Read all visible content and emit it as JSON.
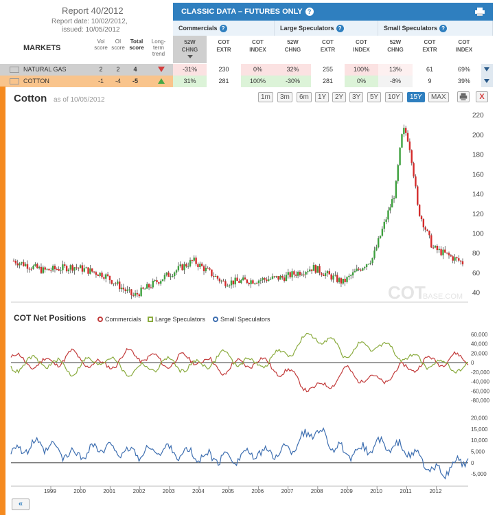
{
  "report": {
    "title": "Report 40/2012",
    "date": "Report date:  10/02/2012,",
    "issued": "issued:  10/05/2012"
  },
  "markets_label": "MARKETS",
  "score_headers": [
    {
      "key": "vol",
      "label": "Vol score"
    },
    {
      "key": "oi",
      "label": "OI score"
    },
    {
      "key": "total",
      "label": "Total score"
    },
    {
      "key": "trend",
      "label": "Long-term trend"
    }
  ],
  "classic_title": "CLASSIC DATA – FUTURES ONLY",
  "groups": [
    "Commercials",
    "Large Speculators",
    "Small Speculators"
  ],
  "columns": [
    "52W CHNG",
    "COT EXTR",
    "COT INDEX",
    "52W CHNG",
    "COT EXTR",
    "COT INDEX",
    "52W CHNG",
    "COT EXTR",
    "COT INDEX"
  ],
  "rows": [
    {
      "name": "NATURAL GAS",
      "vol": "2",
      "oi": "2",
      "total": "4",
      "trend": "down",
      "values": [
        "-31%",
        "230",
        "0%",
        "32%",
        "255",
        "100%",
        "13%",
        "61",
        "69%"
      ]
    },
    {
      "name": "COTTON",
      "vol": "-1",
      "oi": "-4",
      "total": "-5",
      "trend": "up",
      "values": [
        "31%",
        "281",
        "100%",
        "-30%",
        "281",
        "0%",
        "-8%",
        "9",
        "39%"
      ]
    }
  ],
  "chart": {
    "title": "Cotton",
    "asof": "as of 10/05/2012",
    "ranges": [
      "1m",
      "3m",
      "6m",
      "1Y",
      "2Y",
      "3Y",
      "5Y",
      "10Y",
      "15Y",
      "MAX"
    ],
    "active_range": "15Y",
    "close_label": "X",
    "nav_label": "«",
    "watermark": "COT",
    "watermark2": "BASE.COM",
    "cot_title": "COT Net Positions",
    "legend": [
      {
        "name": "Commercials",
        "color": "#c23b3b"
      },
      {
        "name": "Large Speculators",
        "color": "#8aab3e"
      },
      {
        "name": "Small Speculators",
        "color": "#3d6eb0"
      }
    ],
    "colors": {
      "up": "#3da03d",
      "down": "#d42a2a",
      "accent": "#2f7fbf",
      "orange": "#f58a1f"
    }
  },
  "chart_data": [
    {
      "type": "candlestick",
      "title": "Cotton",
      "ylim": [
        30,
        225
      ],
      "y_ticks": [
        "40",
        "60",
        "80",
        "100",
        "120",
        "140",
        "160",
        "180",
        "200",
        "220"
      ],
      "x": [
        "1998",
        "1999",
        "2000",
        "2001",
        "2002",
        "2003",
        "2004",
        "2005",
        "2006",
        "2007",
        "2008",
        "2009",
        "2010",
        "2011",
        "2012",
        "2012.8"
      ],
      "close": [
        72,
        62,
        66,
        58,
        36,
        55,
        72,
        50,
        52,
        55,
        65,
        50,
        75,
        165,
        85,
        70
      ]
    },
    {
      "type": "line",
      "ylim": [
        -90000,
        70000
      ],
      "y_ticks": [
        "60,000",
        "40,000",
        "20,000",
        "0",
        "-20,000",
        "-40,000",
        "-60,000",
        "-80,000"
      ],
      "series": [
        {
          "name": "Commercials",
          "values": [
            10000,
            -5000,
            15000,
            -10000,
            20000,
            0,
            10000,
            -15000,
            5000,
            -20000,
            -60000,
            -20000,
            -40000,
            -10000,
            5000,
            10000
          ]
        },
        {
          "name": "Large Speculators",
          "values": [
            -10000,
            5000,
            -15000,
            10000,
            -20000,
            0,
            -10000,
            15000,
            -5000,
            20000,
            60000,
            20000,
            40000,
            10000,
            -5000,
            -10000
          ]
        }
      ]
    },
    {
      "type": "line",
      "ylim": [
        -8000,
        22000
      ],
      "y_ticks": [
        "20,000",
        "15,000",
        "10,000",
        "5,000",
        "0",
        "-5,000"
      ],
      "series": [
        {
          "name": "Small Speculators",
          "values": [
            5000,
            8000,
            3000,
            7000,
            4000,
            6000,
            3000,
            2000,
            4000,
            5000,
            15000,
            3000,
            8000,
            6000,
            -5000,
            2000
          ]
        }
      ]
    }
  ],
  "x_axis_years": [
    "1999",
    "2000",
    "2001",
    "2002",
    "2003",
    "2004",
    "2005",
    "2006",
    "2007",
    "2008",
    "2009",
    "2010",
    "2011",
    "2012"
  ]
}
